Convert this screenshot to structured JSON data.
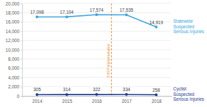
{
  "chart_data": {
    "type": "line",
    "categories": [
      "2014",
      "2015",
      "2016",
      "2017",
      "2018"
    ],
    "series": [
      {
        "name": "Statewide Suspected Serious Injuries",
        "color": "#3aa6dd",
        "marker": "circle",
        "values": [
          17098,
          17104,
          17574,
          17535,
          14919
        ],
        "value_labels": [
          "17,098",
          "17,104",
          "17,574",
          "17,535",
          "14,919"
        ]
      },
      {
        "name": "Cyclist Suspected Serious Injuries",
        "color": "#1f3c93",
        "marker": "circle",
        "values": [
          305,
          314,
          322,
          334,
          258
        ]
      }
    ],
    "ylim": [
      0,
      20000
    ],
    "yticks": [
      0,
      {
        "value": 2000,
        "label": "2,000"
      },
      {
        "value": 4000,
        "label": "4,000"
      },
      {
        "value": 6000,
        "label": "6,000"
      },
      {
        "value": 8000,
        "label": "8,000"
      },
      {
        "value": 10000,
        "label": "10,000"
      },
      {
        "value": 12000,
        "label": "12,000"
      },
      {
        "value": 14000,
        "label": "14,000"
      },
      {
        "value": 16000,
        "label": "16,000"
      },
      {
        "value": 18000,
        "label": "18,000"
      },
      {
        "value": 20000,
        "label": "20,000"
      }
    ],
    "grid": true,
    "data_labels": true,
    "legend": "right",
    "annotations": [
      {
        "text": "SHSP Implementation"
      }
    ]
  }
}
